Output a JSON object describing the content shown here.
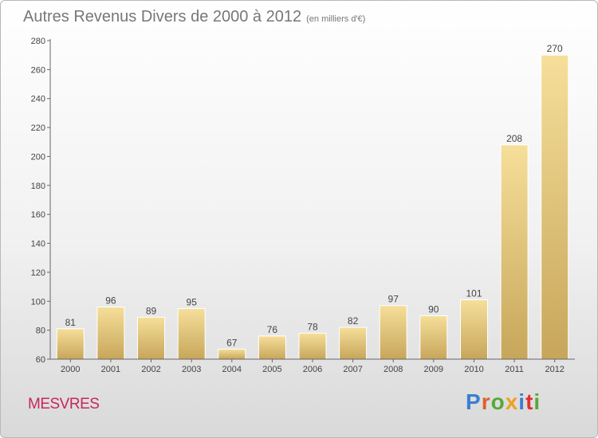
{
  "header": {
    "title": "Autres Revenus Divers de 2000 à 2012",
    "unit": "(en milliers d'€)"
  },
  "footer": {
    "commune": "MESVRES",
    "logo_text": "Proxiti",
    "logo_colors": [
      "#3a7fd0",
      "#e0602a",
      "#57a83a",
      "#f0a020",
      "#3a7fd0",
      "#e03030",
      "#57a83a"
    ]
  },
  "colors": {
    "bar_light": "#f6df9a",
    "bar_dark": "#c7a65a"
  },
  "chart_data": {
    "type": "bar",
    "categories": [
      "2000",
      "2001",
      "2002",
      "2003",
      "2004",
      "2005",
      "2006",
      "2007",
      "2008",
      "2009",
      "2010",
      "2011",
      "2012"
    ],
    "values": [
      81,
      96,
      89,
      95,
      67,
      76,
      78,
      82,
      97,
      90,
      101,
      208,
      270
    ],
    "title": "Autres Revenus Divers de 2000 à 2012",
    "ylim": [
      60,
      280
    ],
    "yticks": [
      60,
      80,
      100,
      120,
      140,
      160,
      180,
      200,
      220,
      240,
      260,
      280
    ],
    "grid": false,
    "legend": "none"
  }
}
